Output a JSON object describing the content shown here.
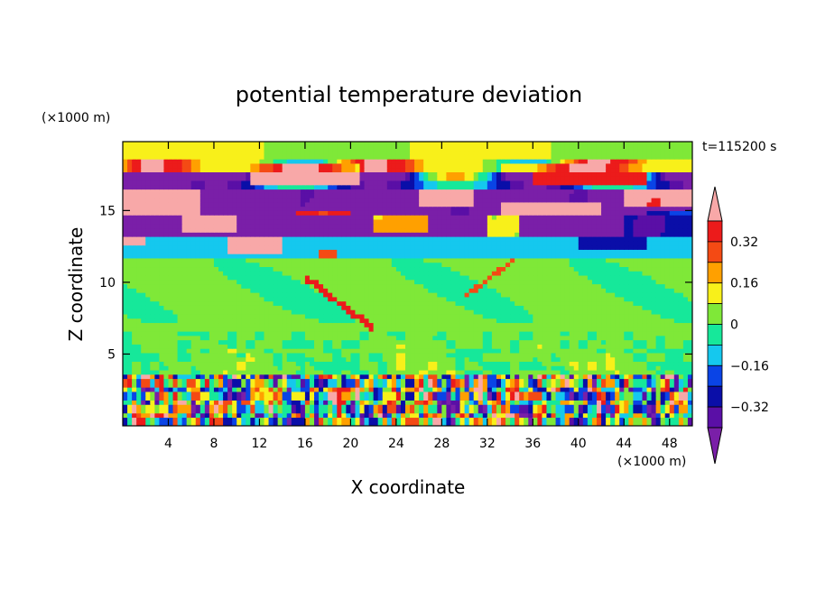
{
  "chart_data": {
    "type": "heatmap",
    "title": "potential temperature deviation",
    "time_label": "t=115200 s",
    "x_unit": "(×1000 m)",
    "y_unit": "(×1000 m)",
    "xlabel": "X coordinate",
    "ylabel": "Z coordinate",
    "xlim": [
      0,
      50
    ],
    "ylim": [
      0,
      19.8
    ],
    "xticks": [
      4,
      8,
      12,
      16,
      20,
      24,
      28,
      32,
      36,
      40,
      44,
      48
    ],
    "yticks": [
      5,
      10,
      15
    ],
    "colorbar": {
      "levels": [
        -0.4,
        -0.32,
        -0.24,
        -0.16,
        -0.08,
        0,
        0.08,
        0.16,
        0.24,
        0.32,
        0.4
      ],
      "tick_labels": [
        "0.32",
        "0.16",
        "0",
        "−0.16",
        "−0.32"
      ],
      "tick_values": [
        0.32,
        0.16,
        0,
        -0.16,
        -0.32
      ],
      "colors_bottom_to_top": [
        "#7a1fa8",
        "#5a0fa6",
        "#0a0ea8",
        "#0a44e6",
        "#15c8ee",
        "#16e89a",
        "#7fe838",
        "#f8f01a",
        "#ffa000",
        "#f44a14",
        "#ec1b1b",
        "#f8a8a8"
      ],
      "extend": "both"
    },
    "regions": [
      {
        "level": 0.04,
        "desc": "background",
        "z": [
          12,
          19.8
        ],
        "x": [
          0,
          50
        ]
      },
      {
        "level": 0.08,
        "desc": "light green upper",
        "z": [
          17.5,
          19.8
        ],
        "x": [
          0,
          50
        ]
      },
      {
        "level": -0.4,
        "desc": "purple band upper",
        "z": [
          16.3,
          17.6
        ],
        "x": [
          0,
          6
        ]
      },
      {
        "level": -0.4,
        "desc": "purple band",
        "z": [
          14.6,
          16.4
        ],
        "x": [
          8,
          48
        ]
      },
      {
        "level": -0.4,
        "desc": "purple band lower",
        "z": [
          13.2,
          14.4
        ],
        "x": [
          0,
          50
        ]
      },
      {
        "level": 0.45,
        "desc": "pink upper layer",
        "z": [
          15.0,
          16.2
        ],
        "x": [
          0,
          8
        ]
      },
      {
        "level": 0.45,
        "desc": "pink upper layer",
        "z": [
          15.0,
          16.8
        ],
        "x": [
          26,
          50
        ]
      },
      {
        "level": -0.12,
        "desc": "cyan layer",
        "z": [
          11.5,
          13.1
        ],
        "x": [
          0,
          50
        ]
      },
      {
        "level": 0.02,
        "desc": "mid troposphere",
        "z": [
          3.6,
          11.5
        ],
        "x": [
          0,
          50
        ]
      },
      {
        "level": 0.1,
        "desc": "boundary layer convection",
        "z": [
          0,
          3.6
        ],
        "x": [
          0,
          50
        ]
      }
    ]
  }
}
